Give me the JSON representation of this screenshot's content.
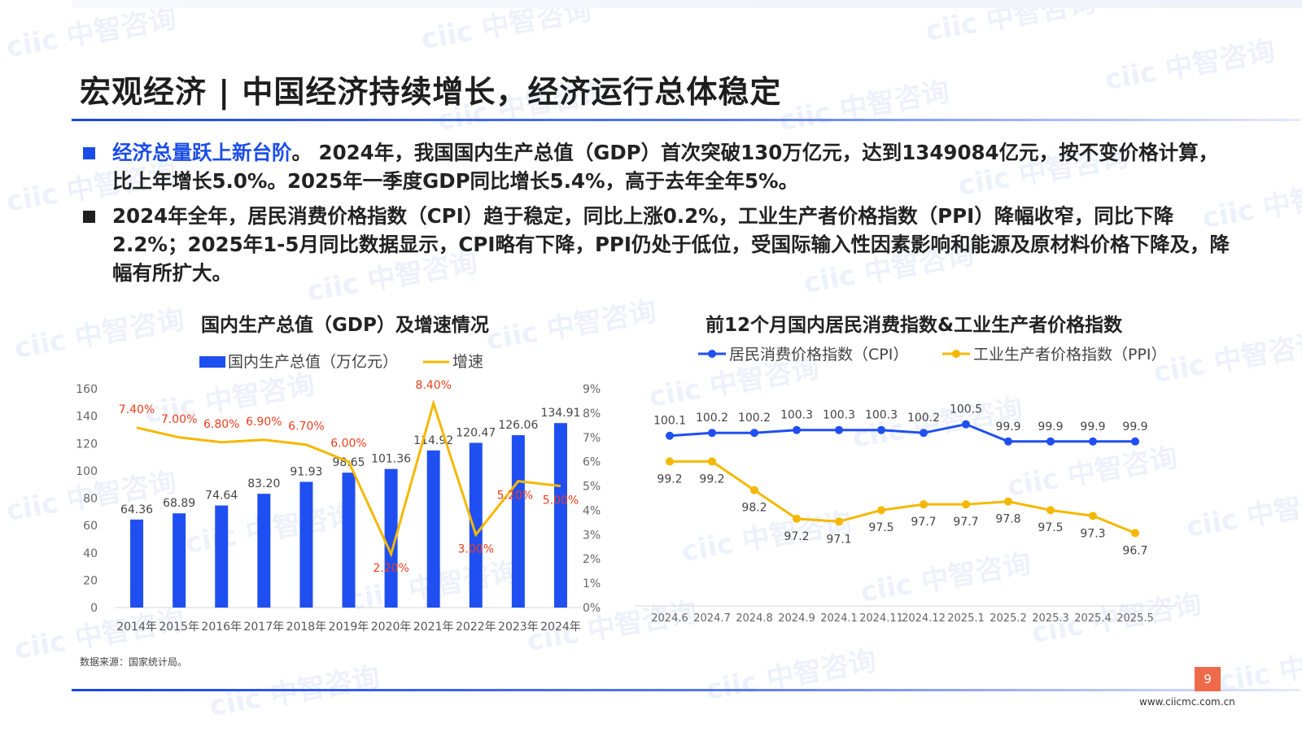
{
  "watermark": {
    "text": "ciic 中智咨询",
    "color": "#c9d6f3"
  },
  "page": {
    "title": "宏观经济 | 中国经济持续增长，经济运行总体稳定",
    "page_number": "9",
    "website": "www.ciicmc.com.cn",
    "source": "数据来源：国家统计局。"
  },
  "bullets": [
    {
      "highlight": "经济总量跃上新台阶",
      "text": "。 2024年，我国国内生产总值（GDP）首次突破130万亿元，达到1349084亿元，按不变价格计算，比上年增长5.0%。2025年一季度GDP同比增长5.4%，高于去年全年5%。"
    },
    {
      "highlight": "",
      "text": "2024年全年，居民消费价格指数（CPI）趋于稳定，同比上涨0.2%，工业生产者价格指数（PPI）降幅收窄，同比下降2.2%；2025年1-5月同比数据显示，CPI略有下降，PPI仍处于低位，受国际输入性因素影响和能源及原材料价格下降及，降幅有所扩大。"
    }
  ],
  "colors": {
    "accent": "#1a4de8",
    "bar": "#1f4ff0",
    "growth": "#f5b800",
    "growth_label": "#ee3d1c",
    "cpi": "#1f4ff0",
    "ppi": "#f5b800"
  },
  "chart_data": [
    {
      "type": "bar",
      "title": "国内生产总值（GDP）及增速情况",
      "categories": [
        "2014年",
        "2015年",
        "2016年",
        "2017年",
        "2018年",
        "2019年",
        "2020年",
        "2021年",
        "2022年",
        "2023年",
        "2024年"
      ],
      "series": [
        {
          "name": "国内生产总值（万亿元）",
          "axis": "left",
          "type": "bar",
          "values": [
            64.36,
            68.89,
            74.64,
            83.2,
            91.93,
            98.65,
            101.36,
            114.92,
            120.47,
            126.06,
            134.91
          ],
          "labels": [
            "64.36",
            "68.89",
            "74.64",
            "83.20",
            "91.93",
            "98.65",
            "101.36",
            "114.92",
            "120.47",
            "126.06",
            "134.91"
          ]
        },
        {
          "name": "增速",
          "axis": "right",
          "type": "line",
          "values": [
            7.4,
            7.0,
            6.8,
            6.9,
            6.7,
            6.0,
            2.2,
            8.4,
            3.0,
            5.2,
            5.0
          ],
          "labels": [
            "7.40%",
            "7.00%",
            "6.80%",
            "6.90%",
            "6.70%",
            "6.00%",
            "2.20%",
            "8.40%",
            "3.00%",
            "5.20%",
            "5.00%"
          ]
        }
      ],
      "ylim": [
        0,
        160
      ],
      "yticks": [
        "0",
        "20",
        "40",
        "60",
        "80",
        "100",
        "120",
        "140",
        "160"
      ],
      "y2lim": [
        0,
        9
      ],
      "y2ticks": [
        "0%",
        "1%",
        "2%",
        "3%",
        "4%",
        "5%",
        "6%",
        "7%",
        "8%",
        "9%"
      ],
      "legend": "top-left",
      "grid": false
    },
    {
      "type": "line",
      "title": "前12个月国内居民消费指数&工业生产者价格指数",
      "categories": [
        "2024.6",
        "2024.7",
        "2024.8",
        "2024.9",
        "2024.1",
        "2024.11",
        "2024.12",
        "2025.1",
        "2025.2",
        "2025.3",
        "2025.4",
        "2025.5"
      ],
      "series": [
        {
          "name": "居民消费价格指数（CPI）",
          "values": [
            100.1,
            100.2,
            100.2,
            100.3,
            100.3,
            100.3,
            100.2,
            100.5,
            99.9,
            99.9,
            99.9,
            99.9
          ],
          "labels": [
            "100.1",
            "100.2",
            "100.2",
            "100.3",
            "100.3",
            "100.3",
            "100.2",
            "100.5",
            "99.9",
            "99.9",
            "99.9",
            "99.9"
          ]
        },
        {
          "name": "工业生产者价格指数（PPI）",
          "values": [
            99.2,
            99.2,
            98.2,
            97.2,
            97.1,
            97.5,
            97.7,
            97.7,
            97.8,
            97.5,
            97.3,
            96.7
          ],
          "labels": [
            "99.2",
            "99.2",
            "98.2",
            "97.2",
            "97.1",
            "97.5",
            "97.7",
            "97.7",
            "97.8",
            "97.5",
            "97.3",
            "96.7"
          ]
        }
      ],
      "legend": "top",
      "grid": false
    }
  ]
}
